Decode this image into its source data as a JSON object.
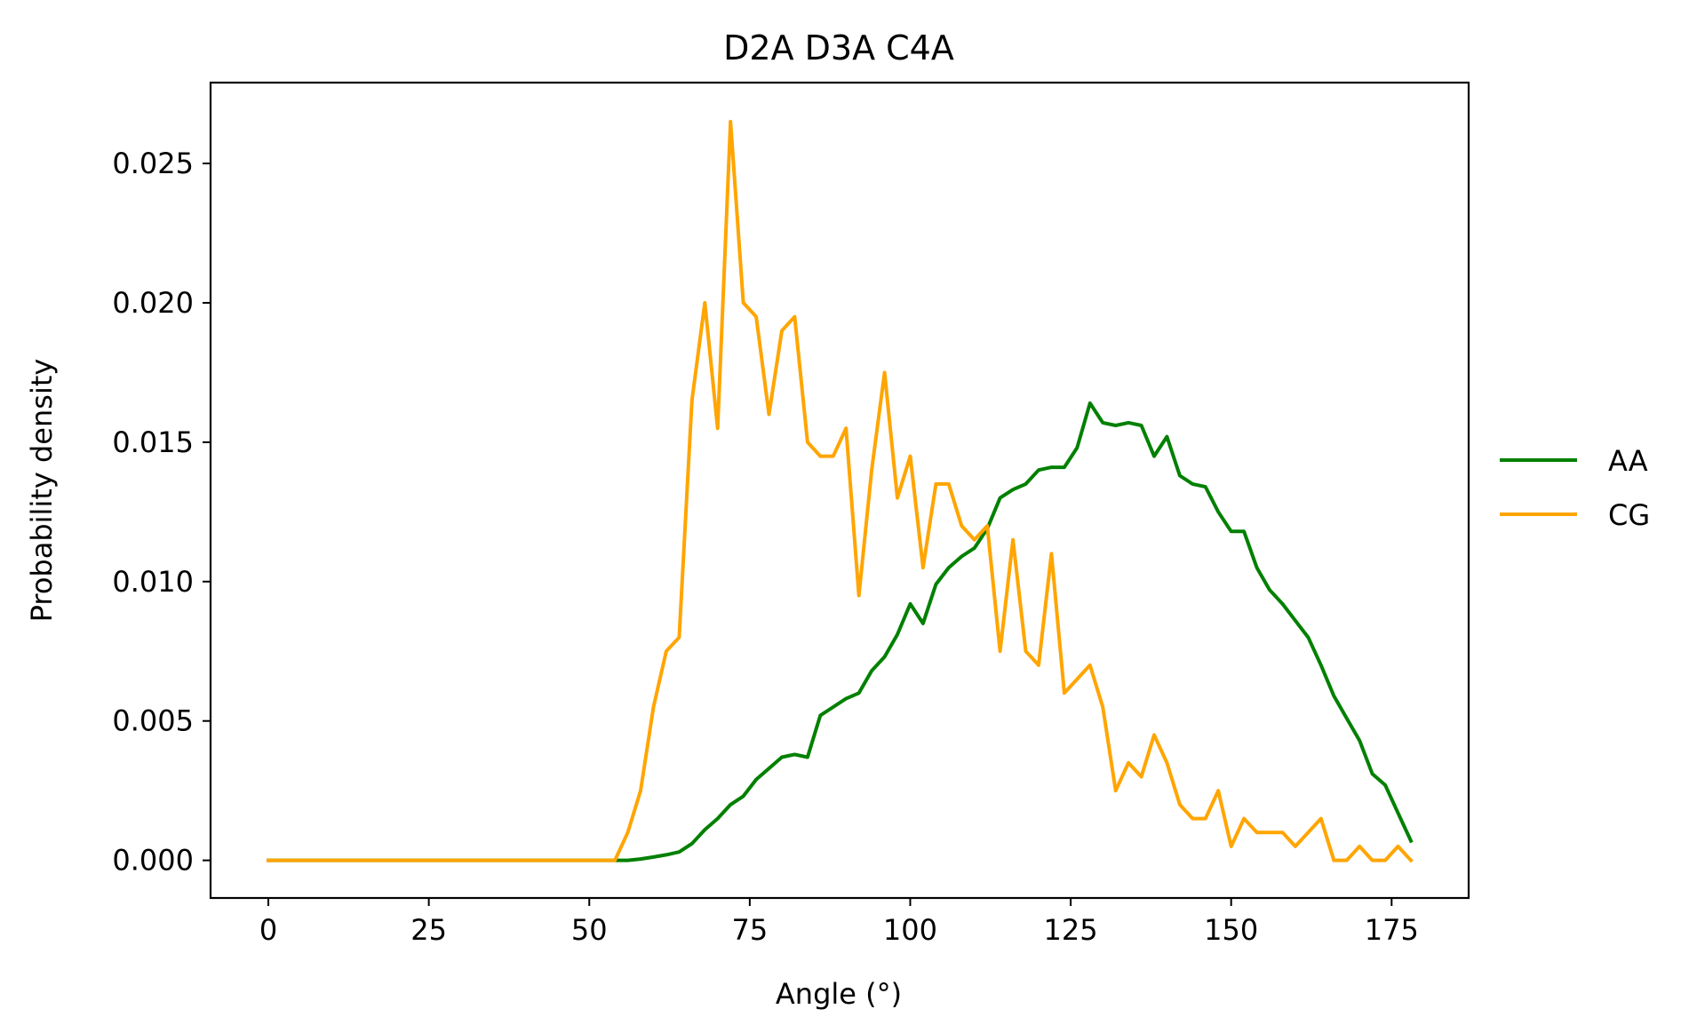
{
  "chart_data": {
    "type": "line",
    "title": "D2A D3A C4A",
    "xlabel": "Angle (°)",
    "ylabel": "Probability density",
    "xlim": [
      -9,
      187
    ],
    "ylim": [
      -0.00135,
      0.0279
    ],
    "xticks": [
      0,
      25,
      50,
      75,
      100,
      125,
      150,
      175
    ],
    "xtick_labels": [
      "0",
      "25",
      "50",
      "75",
      "100",
      "125",
      "150",
      "175"
    ],
    "yticks": [
      0.0,
      0.005,
      0.01,
      0.015,
      0.02,
      0.025
    ],
    "ytick_labels": [
      "0.000",
      "0.005",
      "0.010",
      "0.015",
      "0.020",
      "0.025"
    ],
    "grid": false,
    "legend_position": "outside-right",
    "x": [
      0,
      2,
      4,
      6,
      8,
      10,
      12,
      14,
      16,
      18,
      20,
      22,
      24,
      26,
      28,
      30,
      32,
      34,
      36,
      38,
      40,
      42,
      44,
      46,
      48,
      50,
      52,
      54,
      56,
      58,
      60,
      62,
      64,
      66,
      68,
      70,
      72,
      74,
      76,
      78,
      80,
      82,
      84,
      86,
      88,
      90,
      92,
      94,
      96,
      98,
      100,
      102,
      104,
      106,
      108,
      110,
      112,
      114,
      116,
      118,
      120,
      122,
      124,
      126,
      128,
      130,
      132,
      134,
      136,
      138,
      140,
      142,
      144,
      146,
      148,
      150,
      152,
      154,
      156,
      158,
      160,
      162,
      164,
      166,
      168,
      170,
      172,
      174,
      176,
      178
    ],
    "series": [
      {
        "name": "AA",
        "color": "#008000",
        "values": [
          0,
          0,
          0,
          0,
          0,
          0,
          0,
          0,
          0,
          0,
          0,
          0,
          0,
          0,
          0,
          0,
          0,
          0,
          0,
          0,
          0,
          0,
          0,
          0,
          0,
          0,
          0,
          0,
          0,
          5e-05,
          0.00012,
          0.0002,
          0.0003,
          0.0006,
          0.0011,
          0.0015,
          0.002,
          0.0023,
          0.0029,
          0.0033,
          0.0037,
          0.0038,
          0.0037,
          0.0052,
          0.0055,
          0.0058,
          0.006,
          0.0068,
          0.0073,
          0.0081,
          0.0092,
          0.0085,
          0.0099,
          0.0105,
          0.0109,
          0.0112,
          0.0119,
          0.013,
          0.0133,
          0.0135,
          0.014,
          0.0141,
          0.0141,
          0.0148,
          0.0164,
          0.0157,
          0.0156,
          0.0157,
          0.0156,
          0.0145,
          0.0152,
          0.0138,
          0.0135,
          0.0134,
          0.0125,
          0.0118,
          0.0118,
          0.0105,
          0.0097,
          0.0092,
          0.0086,
          0.008,
          0.007,
          0.0059,
          0.0051,
          0.0043,
          0.0031,
          0.0027,
          0.0017,
          0.0007
        ]
      },
      {
        "name": "CG",
        "color": "#FFA500",
        "values": [
          0,
          0,
          0,
          0,
          0,
          0,
          0,
          0,
          0,
          0,
          0,
          0,
          0,
          0,
          0,
          0,
          0,
          0,
          0,
          0,
          0,
          0,
          0,
          0,
          0,
          0,
          0,
          0,
          0.001,
          0.0025,
          0.0055,
          0.0075,
          0.008,
          0.0165,
          0.02,
          0.0155,
          0.0265,
          0.02,
          0.0195,
          0.016,
          0.019,
          0.0195,
          0.015,
          0.0145,
          0.0145,
          0.0155,
          0.0095,
          0.014,
          0.0175,
          0.013,
          0.0145,
          0.0105,
          0.0135,
          0.0135,
          0.012,
          0.0115,
          0.012,
          0.0075,
          0.0115,
          0.0075,
          0.007,
          0.011,
          0.006,
          0.0065,
          0.007,
          0.0055,
          0.0025,
          0.0035,
          0.003,
          0.0045,
          0.0035,
          0.002,
          0.0015,
          0.0015,
          0.0025,
          0.0005,
          0.0015,
          0.001,
          0.001,
          0.001,
          0.0005,
          0.001,
          0.0015,
          0,
          0,
          0.0005,
          0,
          0,
          0.0005,
          0
        ]
      }
    ]
  }
}
